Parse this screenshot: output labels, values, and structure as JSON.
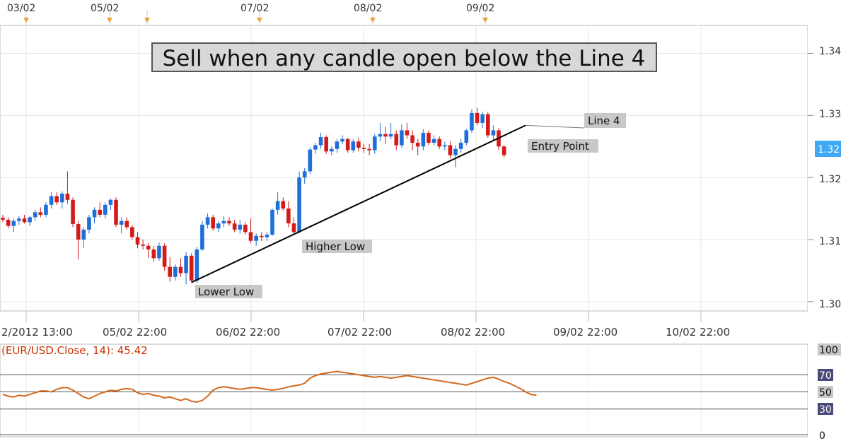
{
  "chart_data": {
    "type": "candlestick",
    "instrument": "EUR/USD",
    "title": "Sell when any candle open below the Line 4",
    "top_date_markers": [
      "03/02",
      "05/02",
      "07/02",
      "08/02",
      "09/02"
    ],
    "x_axis_labels": [
      "2/2012 13:00",
      "05/02 22:00",
      "06/02 22:00",
      "07/02 22:00",
      "08/02 22:00",
      "09/02 22:00",
      "10/02 22:00"
    ],
    "y_axis_labels": [
      "1.34",
      "1.33",
      "1.32",
      "1.31",
      "1.30"
    ],
    "current_price_label": "1.32",
    "y_range": [
      1.2985,
      1.3445
    ],
    "ohlc": [
      [
        1.3135,
        1.314,
        1.3128,
        1.3132
      ],
      [
        1.3132,
        1.3136,
        1.3118,
        1.3122
      ],
      [
        1.3122,
        1.3134,
        1.3112,
        1.313
      ],
      [
        1.313,
        1.3138,
        1.3124,
        1.3134
      ],
      [
        1.3134,
        1.314,
        1.3126,
        1.3128
      ],
      [
        1.3128,
        1.3138,
        1.3122,
        1.3136
      ],
      [
        1.3136,
        1.3148,
        1.313,
        1.3144
      ],
      [
        1.3144,
        1.3152,
        1.3136,
        1.314
      ],
      [
        1.314,
        1.316,
        1.3136,
        1.3156
      ],
      [
        1.3156,
        1.3176,
        1.315,
        1.317
      ],
      [
        1.317,
        1.3176,
        1.3156,
        1.316
      ],
      [
        1.316,
        1.3178,
        1.315,
        1.3174
      ],
      [
        1.3174,
        1.321,
        1.3158,
        1.3164
      ],
      [
        1.3164,
        1.3168,
        1.312,
        1.3125
      ],
      [
        1.3125,
        1.313,
        1.3068,
        1.31
      ],
      [
        1.31,
        1.312,
        1.3086,
        1.3116
      ],
      [
        1.3116,
        1.314,
        1.311,
        1.3136
      ],
      [
        1.3136,
        1.3152,
        1.3126,
        1.3148
      ],
      [
        1.3148,
        1.316,
        1.3136,
        1.314
      ],
      [
        1.314,
        1.316,
        1.3134,
        1.3156
      ],
      [
        1.3156,
        1.3166,
        1.3148,
        1.3164
      ],
      [
        1.3164,
        1.3168,
        1.312,
        1.3124
      ],
      [
        1.3124,
        1.3136,
        1.311,
        1.313
      ],
      [
        1.313,
        1.3136,
        1.3116,
        1.312
      ],
      [
        1.312,
        1.3124,
        1.31,
        1.3104
      ],
      [
        1.3104,
        1.3112,
        1.3086,
        1.3092
      ],
      [
        1.3092,
        1.31,
        1.3084,
        1.309
      ],
      [
        1.309,
        1.3094,
        1.307,
        1.3084
      ],
      [
        1.3084,
        1.309,
        1.3064,
        1.307
      ],
      [
        1.307,
        1.3095,
        1.3066,
        1.309
      ],
      [
        1.309,
        1.3094,
        1.305,
        1.3056
      ],
      [
        1.3056,
        1.3072,
        1.3032,
        1.304
      ],
      [
        1.304,
        1.306,
        1.3034,
        1.3056
      ],
      [
        1.3056,
        1.307,
        1.304,
        1.3046
      ],
      [
        1.3046,
        1.308,
        1.3028,
        1.3074
      ],
      [
        1.3074,
        1.3078,
        1.3031,
        1.3034
      ],
      [
        1.3034,
        1.3088,
        1.303,
        1.3084
      ],
      [
        1.3084,
        1.313,
        1.3082,
        1.3124
      ],
      [
        1.3124,
        1.3142,
        1.3118,
        1.3136
      ],
      [
        1.3136,
        1.314,
        1.3114,
        1.3118
      ],
      [
        1.3118,
        1.313,
        1.3112,
        1.3126
      ],
      [
        1.3126,
        1.3138,
        1.312,
        1.313
      ],
      [
        1.313,
        1.3136,
        1.3122,
        1.3126
      ],
      [
        1.3126,
        1.3132,
        1.3112,
        1.3116
      ],
      [
        1.3116,
        1.3132,
        1.311,
        1.3124
      ],
      [
        1.3124,
        1.3128,
        1.3108,
        1.3112
      ],
      [
        1.3112,
        1.3134,
        1.3094,
        1.3098
      ],
      [
        1.3098,
        1.311,
        1.309,
        1.3106
      ],
      [
        1.3106,
        1.3112,
        1.3098,
        1.3104
      ],
      [
        1.3104,
        1.3112,
        1.3098,
        1.3108
      ],
      [
        1.3108,
        1.315,
        1.3106,
        1.3148
      ],
      [
        1.3148,
        1.3176,
        1.314,
        1.3162
      ],
      [
        1.3162,
        1.3168,
        1.3146,
        1.315
      ],
      [
        1.315,
        1.3162,
        1.312,
        1.3126
      ],
      [
        1.3126,
        1.3136,
        1.3108,
        1.3112
      ],
      [
        1.3112,
        1.321,
        1.311,
        1.32
      ],
      [
        1.32,
        1.3215,
        1.319,
        1.321
      ],
      [
        1.321,
        1.3248,
        1.3206,
        1.3245
      ],
      [
        1.3245,
        1.3256,
        1.3238,
        1.3252
      ],
      [
        1.3252,
        1.3272,
        1.3246,
        1.3265
      ],
      [
        1.3265,
        1.3268,
        1.3238,
        1.3242
      ],
      [
        1.3242,
        1.325,
        1.3236,
        1.3246
      ],
      [
        1.3246,
        1.3262,
        1.324,
        1.3258
      ],
      [
        1.3258,
        1.3268,
        1.3254,
        1.3262
      ],
      [
        1.3262,
        1.3264,
        1.324,
        1.3244
      ],
      [
        1.3244,
        1.3262,
        1.324,
        1.3258
      ],
      [
        1.3258,
        1.3264,
        1.3242,
        1.3248
      ],
      [
        1.3248,
        1.3254,
        1.324,
        1.3246
      ],
      [
        1.3246,
        1.3254,
        1.3236,
        1.3244
      ],
      [
        1.3244,
        1.327,
        1.3238,
        1.3266
      ],
      [
        1.3266,
        1.3288,
        1.3258,
        1.327
      ],
      [
        1.327,
        1.3282,
        1.3254,
        1.3266
      ],
      [
        1.3266,
        1.3288,
        1.3262,
        1.327
      ],
      [
        1.327,
        1.3276,
        1.3244,
        1.3252
      ],
      [
        1.3252,
        1.3286,
        1.3248,
        1.3276
      ],
      [
        1.3276,
        1.3288,
        1.3262,
        1.3268
      ],
      [
        1.3268,
        1.3276,
        1.3244,
        1.3256
      ],
      [
        1.3256,
        1.3262,
        1.3236,
        1.325
      ],
      [
        1.325,
        1.3278,
        1.3244,
        1.3272
      ],
      [
        1.3272,
        1.3276,
        1.3252,
        1.3256
      ],
      [
        1.3256,
        1.3268,
        1.3252,
        1.3262
      ],
      [
        1.3262,
        1.3266,
        1.3246,
        1.325
      ],
      [
        1.325,
        1.3258,
        1.3244,
        1.3252
      ],
      [
        1.3252,
        1.3258,
        1.323,
        1.3236
      ],
      [
        1.3236,
        1.3252,
        1.3216,
        1.3246
      ],
      [
        1.3246,
        1.3262,
        1.324,
        1.3256
      ],
      [
        1.3256,
        1.3278,
        1.3252,
        1.3276
      ],
      [
        1.3276,
        1.331,
        1.3272,
        1.3304
      ],
      [
        1.3304,
        1.3312,
        1.3284,
        1.3288
      ],
      [
        1.3288,
        1.3306,
        1.328,
        1.3302
      ],
      [
        1.3302,
        1.3306,
        1.3264,
        1.3268
      ],
      [
        1.3268,
        1.3284,
        1.3258,
        1.3276
      ],
      [
        1.3276,
        1.328,
        1.3244,
        1.325
      ],
      [
        1.325,
        1.3252,
        1.3232,
        1.3236
      ]
    ],
    "annotations": [
      {
        "text": "Lower Low"
      },
      {
        "text": "Higher Low"
      },
      {
        "text": "Line 4"
      },
      {
        "text": "Entry Point"
      }
    ],
    "trendline": {
      "from_index": 35,
      "from_price": 1.3031,
      "to_index": 97,
      "to_price": 1.3284
    },
    "rsi": {
      "title": "(EUR/USD.Close, 14): 45.42",
      "levels": [
        "100",
        "70",
        "50",
        "30",
        "0"
      ],
      "level_values": [
        100,
        70,
        50,
        30,
        0
      ],
      "values": [
        47,
        45,
        44,
        46,
        45,
        47,
        49,
        51,
        51,
        50,
        53,
        55,
        55,
        52,
        48,
        44,
        42,
        45,
        48,
        50,
        52,
        51,
        53,
        54,
        53,
        49,
        47,
        48,
        46,
        45,
        43,
        44,
        42,
        40,
        42,
        39,
        38,
        40,
        45,
        52,
        55,
        56,
        55,
        54,
        53,
        54,
        55,
        55,
        54,
        53,
        52,
        53,
        54,
        56,
        57,
        58,
        60,
        66,
        69,
        71,
        72,
        73,
        74,
        73,
        72,
        71,
        70,
        69,
        68,
        67,
        68,
        67,
        66,
        67,
        68,
        69,
        68,
        67,
        66,
        65,
        64,
        63,
        62,
        61,
        60,
        59,
        58,
        60,
        62,
        64,
        66,
        67,
        65,
        62,
        60,
        57,
        54,
        50,
        47,
        46
      ],
      "current": "45.42"
    },
    "colors": {
      "bull": "#1e6fd9",
      "bear": "#d41a1a",
      "rsi_line": "#d2691e",
      "current_price_bg": "#3fa9f5",
      "marker": "#f0a030",
      "level_bg": "#4b4a7a"
    }
  }
}
